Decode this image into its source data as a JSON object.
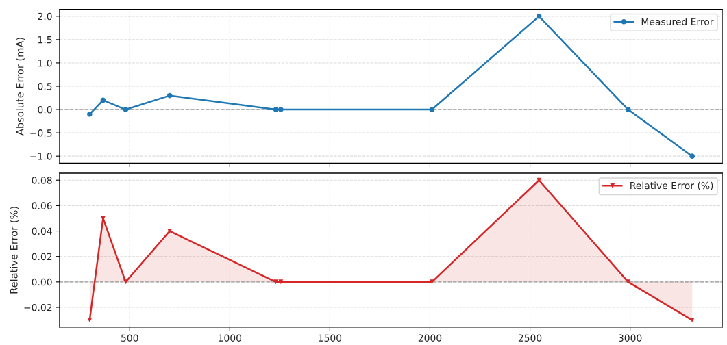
{
  "chart_data": [
    {
      "type": "line",
      "x": [
        300,
        367,
        480,
        700,
        1230,
        1255,
        2010,
        2545,
        2990,
        3310
      ],
      "series": [
        {
          "name": "Measured Error",
          "color": "#1f77b4",
          "values": [
            -0.1,
            0.2,
            0,
            0.3,
            0,
            0,
            0,
            2.0,
            0,
            -1.0
          ]
        }
      ],
      "ylabel": "Absolute Error (mA)",
      "xlim": [
        150,
        3460
      ],
      "ylim": [
        -1.15,
        2.15
      ],
      "xticks": [
        500,
        1000,
        1500,
        2000,
        2500,
        3000
      ],
      "yticks": [
        {
          "value": -1,
          "label": "−1.0"
        },
        {
          "value": -0.5,
          "label": "−0.5"
        },
        {
          "value": 0,
          "label": "0.0"
        },
        {
          "value": 0.5,
          "label": "0.5"
        },
        {
          "value": 1,
          "label": "1.0"
        },
        {
          "value": 1.5,
          "label": "1.5"
        },
        {
          "value": 2,
          "label": "2.0"
        }
      ],
      "grid": true,
      "legend": "top right",
      "marker": "circle",
      "line_style": "solid",
      "ref_lines": [
        {
          "axis": "y",
          "value": 0,
          "color": "#999999",
          "line_style": "dashed"
        }
      ],
      "tick_labels": "y"
    },
    {
      "type": "area",
      "x": [
        300,
        367,
        480,
        700,
        1230,
        1255,
        2010,
        2545,
        2990,
        3310
      ],
      "series": [
        {
          "name": "Relative Error (%)",
          "color": "#d62728",
          "values": [
            -0.03,
            0.05,
            0,
            0.04,
            0,
            0,
            0,
            0.08,
            0,
            -0.03
          ]
        }
      ],
      "ylabel": "Relative Error (%)",
      "xlim": [
        150,
        3460
      ],
      "ylim": [
        -0.0355,
        0.0855
      ],
      "xticks": [
        500,
        1000,
        1500,
        2000,
        2500,
        3000
      ],
      "yticks": [
        {
          "value": -0.02,
          "label": "−0.02"
        },
        {
          "value": 0,
          "label": "0.00"
        },
        {
          "value": 0.02,
          "label": "0.02"
        },
        {
          "value": 0.04,
          "label": "0.04"
        },
        {
          "value": 0.06,
          "label": "0.06"
        },
        {
          "value": 0.08,
          "label": "0.08"
        }
      ],
      "grid": true,
      "legend": "top right",
      "marker": "triangle",
      "line_style": "solid",
      "ref_lines": [
        {
          "axis": "y",
          "value": 0,
          "color": "#999999",
          "line_style": "dashed"
        }
      ]
    }
  ]
}
